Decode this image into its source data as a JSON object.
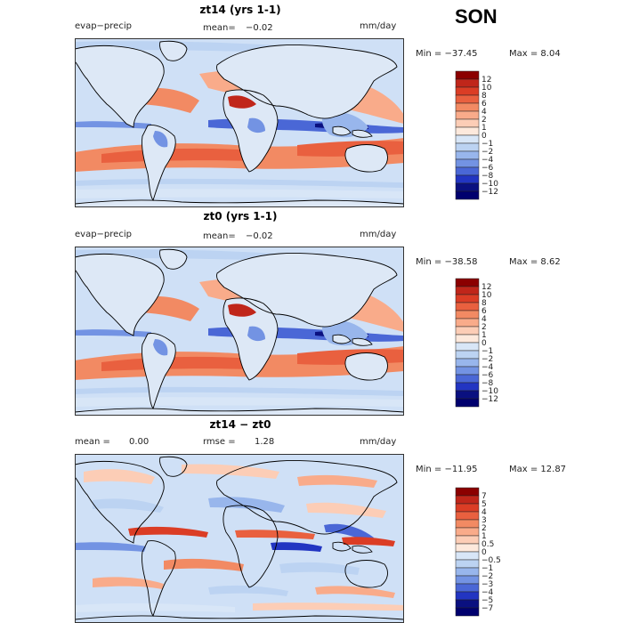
{
  "season": "SON",
  "colors": {
    "ocean": "#cfe0f6",
    "land": "#dde8f6",
    "border": "#000000"
  },
  "chart_data": [
    {
      "type": "heatmap",
      "title": "zt14 (yrs 1-1)",
      "variable": "evap−precip",
      "stat_label": "mean=",
      "stat_value": "−0.02",
      "units": "mm/day",
      "min_label": "Min = −37.45",
      "max_label": "Max =    8.04",
      "levels": [
        "12",
        "10",
        "8",
        "6",
        "4",
        "2",
        "1",
        "0",
        "−1",
        "−2",
        "−4",
        "−6",
        "−8",
        "−10",
        "−12"
      ],
      "colors": [
        "#8b0000",
        "#c0261a",
        "#db3d25",
        "#e9603f",
        "#f28a63",
        "#f9ab8a",
        "#fccdb6",
        "#fde9dc",
        "#d8e6f7",
        "#bcd3f2",
        "#98b6ec",
        "#7393e3",
        "#4a67d6",
        "#2235c2",
        "#0a1080",
        "#00006e"
      ]
    },
    {
      "type": "heatmap",
      "title": "zt0 (yrs 1-1)",
      "variable": "evap−precip",
      "stat_label": "mean=",
      "stat_value": "−0.02",
      "units": "mm/day",
      "min_label": "Min = −38.58",
      "max_label": "Max =    8.62",
      "levels": [
        "12",
        "10",
        "8",
        "6",
        "4",
        "2",
        "1",
        "0",
        "−1",
        "−2",
        "−4",
        "−6",
        "−8",
        "−10",
        "−12"
      ],
      "colors": [
        "#8b0000",
        "#c0261a",
        "#db3d25",
        "#e9603f",
        "#f28a63",
        "#f9ab8a",
        "#fccdb6",
        "#fde9dc",
        "#d8e6f7",
        "#bcd3f2",
        "#98b6ec",
        "#7393e3",
        "#4a67d6",
        "#2235c2",
        "#0a1080",
        "#00006e"
      ]
    },
    {
      "type": "heatmap",
      "title": "zt14 − zt0",
      "variable": "mean =",
      "variable_value": "0.00",
      "stat_label": "rmse =",
      "stat_value": "1.28",
      "units": "mm/day",
      "min_label": "Min = −11.95",
      "max_label": "Max =  12.87",
      "levels": [
        "7",
        "5",
        "4",
        "3",
        "2",
        "1",
        "0.5",
        "0",
        "−0.5",
        "−1",
        "−2",
        "−3",
        "−4",
        "−5",
        "−7"
      ],
      "colors": [
        "#8b0000",
        "#c0261a",
        "#db3d25",
        "#e9603f",
        "#f28a63",
        "#f9ab8a",
        "#fccdb6",
        "#fde9dc",
        "#d8e6f7",
        "#bcd3f2",
        "#98b6ec",
        "#7393e3",
        "#4a67d6",
        "#2235c2",
        "#0a1080",
        "#00006e"
      ]
    }
  ]
}
